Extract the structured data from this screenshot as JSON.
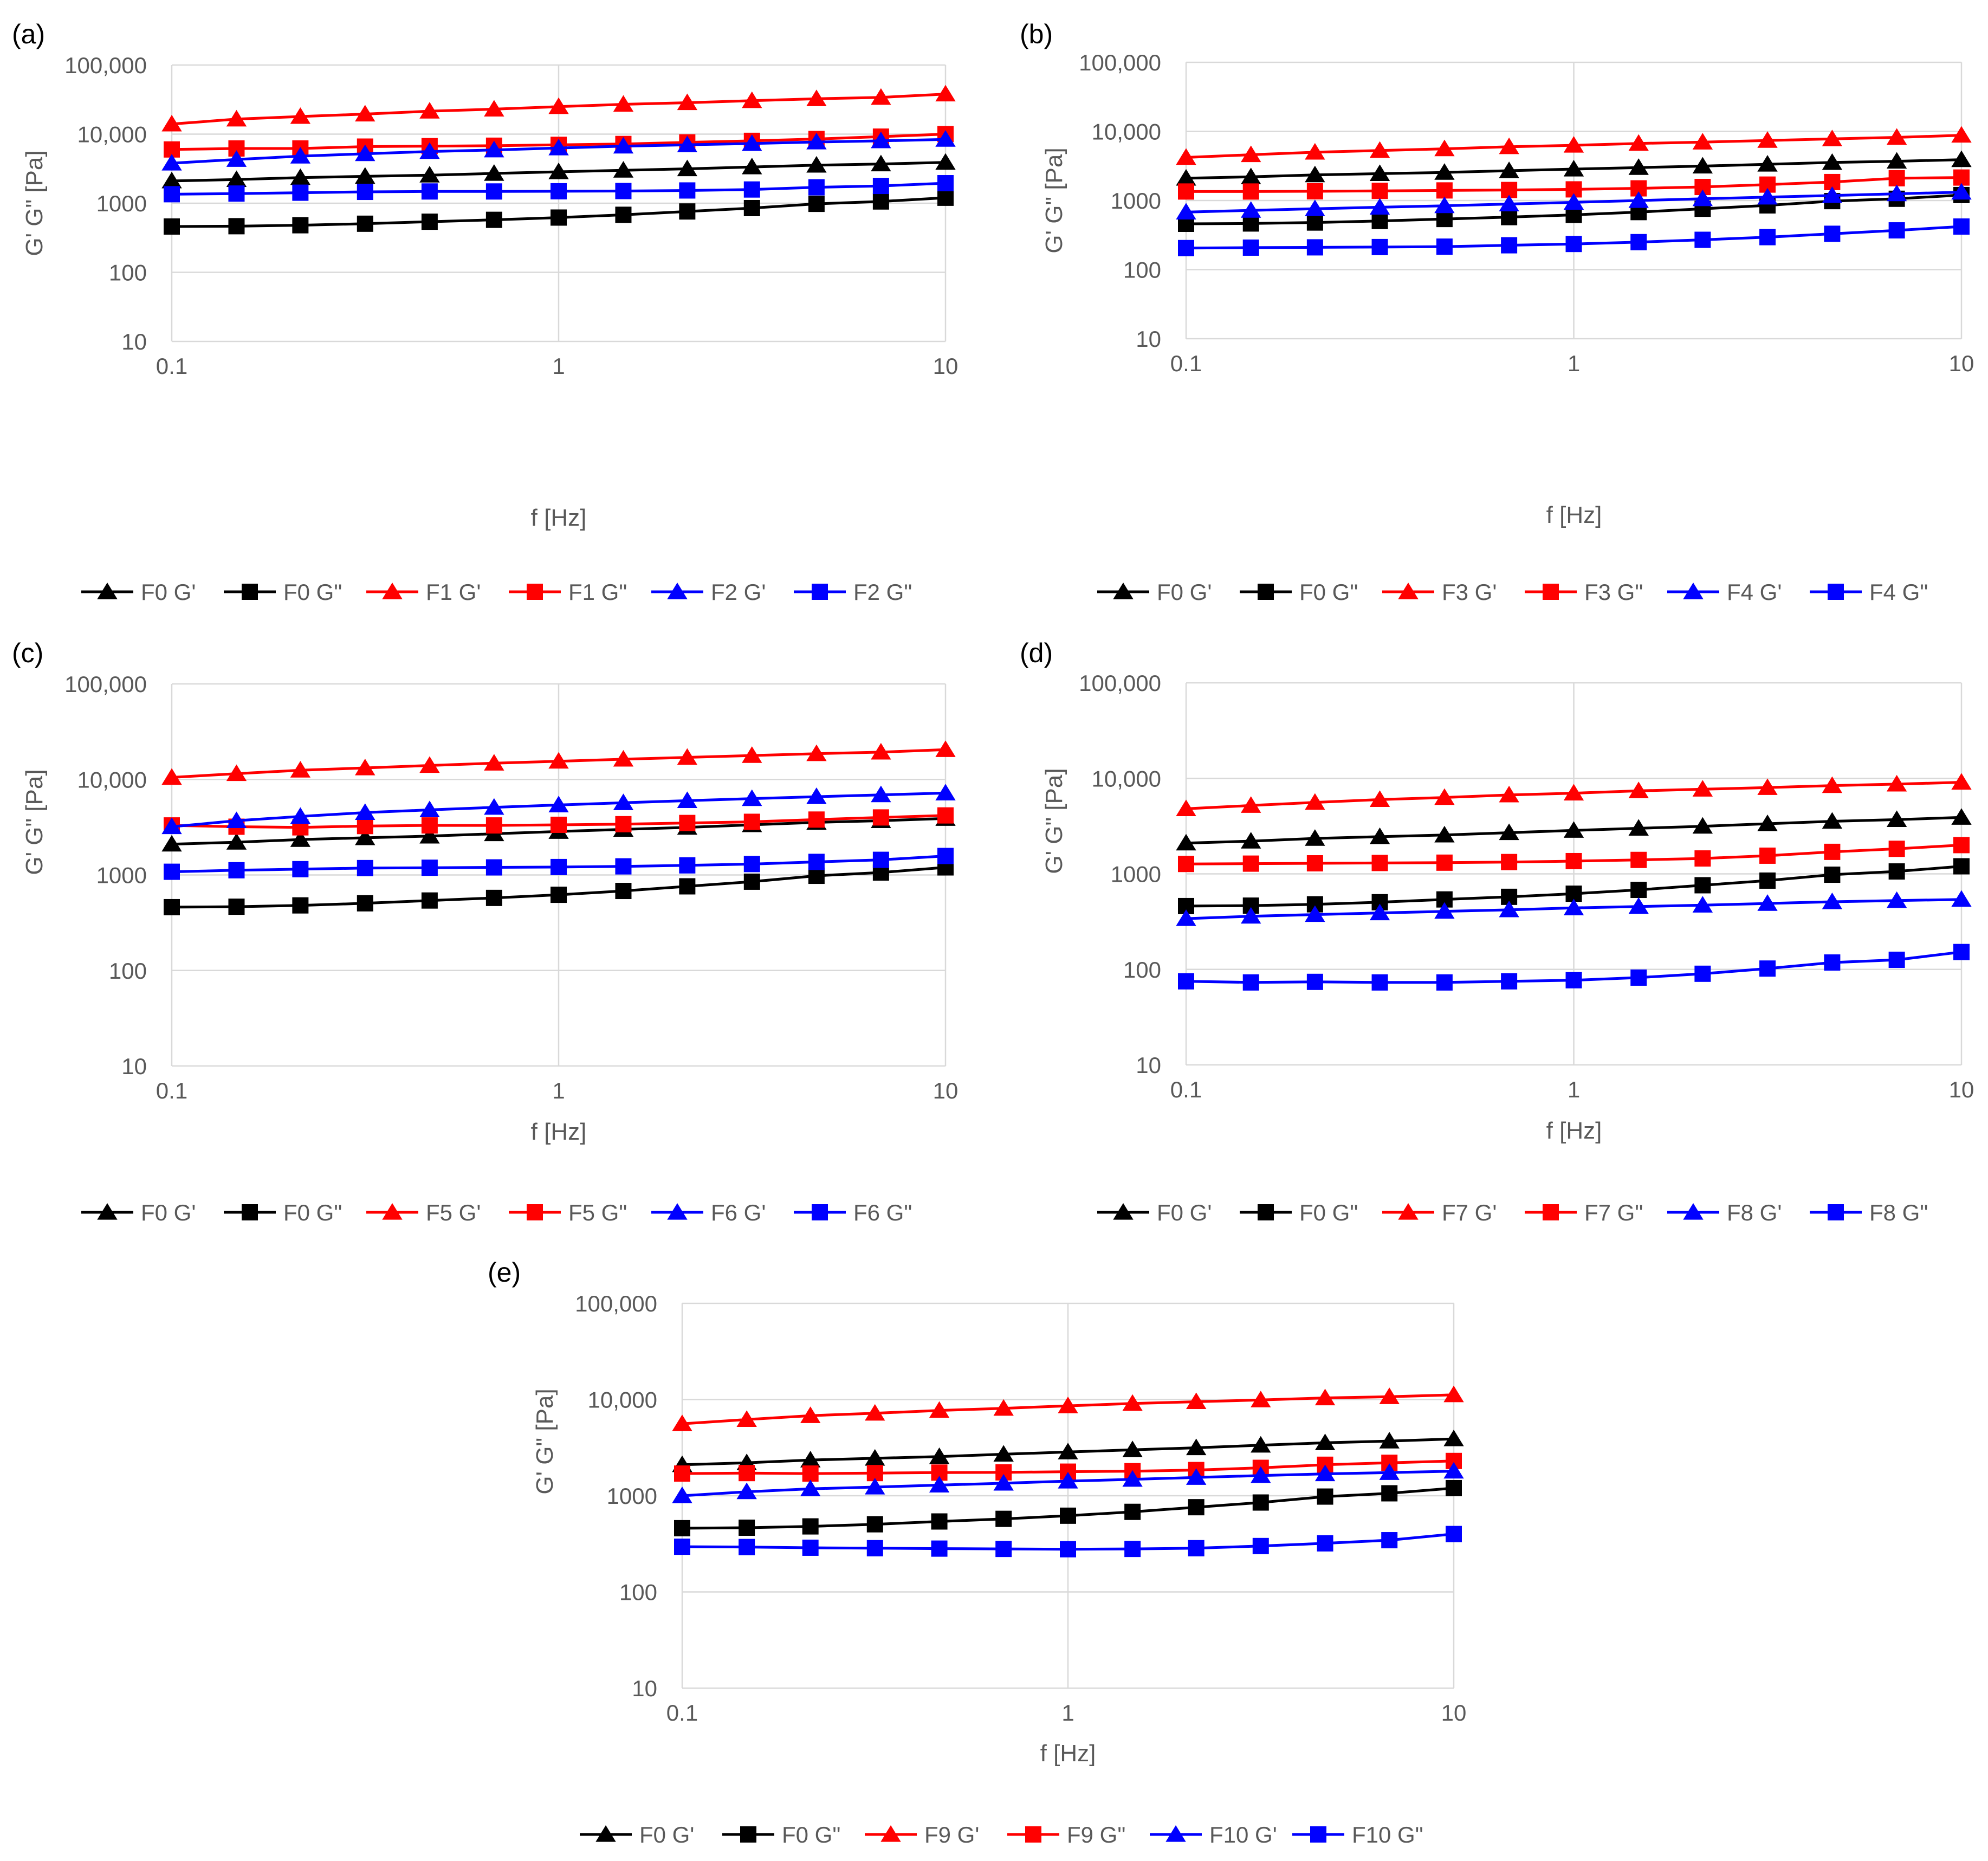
{
  "figure": {
    "x_axis_label": "f [Hz]",
    "y_axis_label": "G' G\" [Pa]",
    "x_tick_labels": [
      "0.1",
      "1",
      "10"
    ],
    "y_tick_labels": [
      "10",
      "100",
      "1000",
      "10,000",
      "100,000"
    ],
    "colors": {
      "black": "#000000",
      "red": "#ff0000",
      "blue": "#0000ff",
      "grid": "#d9d9d9",
      "axis_text": "#595959"
    }
  },
  "chart_data": [
    {
      "panel_label": "(a)",
      "type": "line",
      "xscale": "log",
      "yscale": "log",
      "xlim": [
        0.1,
        10
      ],
      "ylim": [
        10,
        100000
      ],
      "xlabel": "f [Hz]",
      "ylabel": "G' G\" [Pa]",
      "x": [
        0.1,
        0.147,
        0.215,
        0.316,
        0.464,
        0.681,
        1,
        1.47,
        2.15,
        3.16,
        4.64,
        6.81,
        10
      ],
      "series": [
        {
          "name": "F0 G'",
          "color": "#000000",
          "marker": "triangle",
          "values": [
            2100,
            2200,
            2350,
            2450,
            2550,
            2700,
            2850,
            3000,
            3150,
            3350,
            3550,
            3700,
            3900
          ]
        },
        {
          "name": "F0 G\"",
          "color": "#000000",
          "marker": "square",
          "values": [
            460,
            465,
            480,
            505,
            540,
            575,
            620,
            680,
            760,
            850,
            980,
            1060,
            1200
          ]
        },
        {
          "name": "F1 G'",
          "color": "#ff0000",
          "marker": "triangle",
          "values": [
            14000,
            16500,
            18000,
            19500,
            21500,
            23000,
            25000,
            27000,
            28500,
            30500,
            32500,
            34000,
            38000
          ]
        },
        {
          "name": "F1 G\"",
          "color": "#ff0000",
          "marker": "square",
          "values": [
            6000,
            6200,
            6200,
            6600,
            6700,
            6800,
            7000,
            7200,
            7600,
            8000,
            8500,
            9200,
            10000
          ]
        },
        {
          "name": "F2 G'",
          "color": "#0000ff",
          "marker": "triangle",
          "values": [
            3800,
            4300,
            4800,
            5200,
            5600,
            5900,
            6300,
            6700,
            7000,
            7300,
            7700,
            8000,
            8400
          ]
        },
        {
          "name": "F2 G\"",
          "color": "#0000ff",
          "marker": "square",
          "values": [
            1350,
            1380,
            1420,
            1460,
            1480,
            1480,
            1490,
            1500,
            1530,
            1580,
            1700,
            1780,
            1950
          ]
        }
      ]
    },
    {
      "panel_label": "(b)",
      "type": "line",
      "xscale": "log",
      "yscale": "log",
      "xlim": [
        0.1,
        10
      ],
      "ylim": [
        10,
        100000
      ],
      "xlabel": "f [Hz]",
      "ylabel": "G' G\" [Pa]",
      "x": [
        0.1,
        0.147,
        0.215,
        0.316,
        0.464,
        0.681,
        1,
        1.47,
        2.15,
        3.16,
        4.64,
        6.81,
        10
      ],
      "series": [
        {
          "name": "F0 G'",
          "color": "#000000",
          "marker": "triangle",
          "values": [
            2100,
            2200,
            2350,
            2450,
            2550,
            2700,
            2850,
            3000,
            3150,
            3350,
            3550,
            3700,
            3900
          ]
        },
        {
          "name": "F0 G\"",
          "color": "#000000",
          "marker": "square",
          "values": [
            460,
            465,
            480,
            505,
            540,
            575,
            620,
            680,
            760,
            850,
            980,
            1060,
            1200
          ]
        },
        {
          "name": "F3 G'",
          "color": "#ff0000",
          "marker": "triangle",
          "values": [
            4200,
            4600,
            5000,
            5300,
            5600,
            6000,
            6300,
            6700,
            7000,
            7400,
            7800,
            8200,
            8800
          ]
        },
        {
          "name": "F3 G\"",
          "color": "#ff0000",
          "marker": "square",
          "values": [
            1350,
            1350,
            1360,
            1380,
            1400,
            1420,
            1450,
            1500,
            1570,
            1700,
            1850,
            2100,
            2150
          ]
        },
        {
          "name": "F4 G'",
          "color": "#0000ff",
          "marker": "triangle",
          "values": [
            680,
            720,
            760,
            800,
            840,
            890,
            940,
            1000,
            1060,
            1120,
            1180,
            1250,
            1320
          ]
        },
        {
          "name": "F4 G\"",
          "color": "#0000ff",
          "marker": "square",
          "values": [
            205,
            208,
            210,
            212,
            215,
            225,
            235,
            250,
            270,
            295,
            330,
            370,
            420
          ]
        }
      ]
    },
    {
      "panel_label": "(c)",
      "type": "line",
      "xscale": "log",
      "yscale": "log",
      "xlim": [
        0.1,
        10
      ],
      "ylim": [
        10,
        100000
      ],
      "xlabel": "f [Hz]",
      "ylabel": "G' G\" [Pa]",
      "x": [
        0.1,
        0.147,
        0.215,
        0.316,
        0.464,
        0.681,
        1,
        1.47,
        2.15,
        3.16,
        4.64,
        6.81,
        10
      ],
      "series": [
        {
          "name": "F0 G'",
          "color": "#000000",
          "marker": "triangle",
          "values": [
            2100,
            2200,
            2350,
            2450,
            2550,
            2700,
            2850,
            3000,
            3150,
            3350,
            3550,
            3700,
            3900
          ]
        },
        {
          "name": "F0 G\"",
          "color": "#000000",
          "marker": "square",
          "values": [
            460,
            465,
            480,
            505,
            540,
            575,
            620,
            680,
            760,
            850,
            980,
            1060,
            1200
          ]
        },
        {
          "name": "F5 G'",
          "color": "#ff0000",
          "marker": "triangle",
          "values": [
            10500,
            11500,
            12500,
            13200,
            14000,
            14800,
            15500,
            16300,
            17000,
            17800,
            18600,
            19300,
            20500
          ]
        },
        {
          "name": "F5 G\"",
          "color": "#ff0000",
          "marker": "square",
          "values": [
            3300,
            3200,
            3150,
            3250,
            3300,
            3300,
            3350,
            3400,
            3500,
            3600,
            3800,
            4000,
            4200
          ]
        },
        {
          "name": "F6 G'",
          "color": "#0000ff",
          "marker": "triangle",
          "values": [
            3200,
            3700,
            4100,
            4500,
            4800,
            5100,
            5400,
            5700,
            6000,
            6300,
            6600,
            6900,
            7200
          ]
        },
        {
          "name": "F6 G\"",
          "color": "#0000ff",
          "marker": "square",
          "values": [
            1080,
            1120,
            1150,
            1180,
            1190,
            1200,
            1210,
            1230,
            1260,
            1300,
            1370,
            1440,
            1580
          ]
        }
      ]
    },
    {
      "panel_label": "(d)",
      "type": "line",
      "xscale": "log",
      "yscale": "log",
      "xlim": [
        0.1,
        10
      ],
      "ylim": [
        10,
        100000
      ],
      "xlabel": "f [Hz]",
      "ylabel": "G' G\" [Pa]",
      "x": [
        0.1,
        0.147,
        0.215,
        0.316,
        0.464,
        0.681,
        1,
        1.47,
        2.15,
        3.16,
        4.64,
        6.81,
        10
      ],
      "series": [
        {
          "name": "F0 G'",
          "color": "#000000",
          "marker": "triangle",
          "values": [
            2100,
            2200,
            2350,
            2450,
            2550,
            2700,
            2850,
            3000,
            3150,
            3350,
            3550,
            3700,
            3900
          ]
        },
        {
          "name": "F0 G\"",
          "color": "#000000",
          "marker": "square",
          "values": [
            460,
            465,
            480,
            505,
            540,
            575,
            620,
            680,
            760,
            850,
            980,
            1060,
            1200
          ]
        },
        {
          "name": "F7 G'",
          "color": "#ff0000",
          "marker": "triangle",
          "values": [
            4800,
            5200,
            5600,
            6000,
            6300,
            6700,
            7000,
            7400,
            7700,
            8000,
            8400,
            8700,
            9100
          ]
        },
        {
          "name": "F7 G\"",
          "color": "#ff0000",
          "marker": "square",
          "values": [
            1270,
            1280,
            1290,
            1300,
            1310,
            1330,
            1360,
            1400,
            1450,
            1550,
            1700,
            1830,
            2000
          ]
        },
        {
          "name": "F8 G'",
          "color": "#0000ff",
          "marker": "triangle",
          "values": [
            340,
            360,
            375,
            390,
            405,
            420,
            440,
            455,
            470,
            490,
            510,
            525,
            540
          ]
        },
        {
          "name": "F8 G\"",
          "color": "#0000ff",
          "marker": "square",
          "values": [
            75,
            73,
            74,
            73,
            73,
            75,
            77,
            82,
            90,
            102,
            118,
            126,
            152
          ]
        }
      ]
    },
    {
      "panel_label": "(e)",
      "type": "line",
      "xscale": "log",
      "yscale": "log",
      "xlim": [
        0.1,
        10
      ],
      "ylim": [
        10,
        100000
      ],
      "xlabel": "f [Hz]",
      "ylabel": "G' G\" [Pa]",
      "x": [
        0.1,
        0.147,
        0.215,
        0.316,
        0.464,
        0.681,
        1,
        1.47,
        2.15,
        3.16,
        4.64,
        6.81,
        10
      ],
      "series": [
        {
          "name": "F0 G'",
          "color": "#000000",
          "marker": "triangle",
          "values": [
            2100,
            2200,
            2350,
            2450,
            2550,
            2700,
            2850,
            3000,
            3150,
            3350,
            3550,
            3700,
            3900
          ]
        },
        {
          "name": "F0 G\"",
          "color": "#000000",
          "marker": "square",
          "values": [
            460,
            465,
            480,
            505,
            540,
            575,
            620,
            680,
            760,
            850,
            980,
            1060,
            1200
          ]
        },
        {
          "name": "F9 G'",
          "color": "#ff0000",
          "marker": "triangle",
          "values": [
            5600,
            6200,
            6800,
            7200,
            7700,
            8100,
            8600,
            9100,
            9500,
            9900,
            10400,
            10700,
            11200
          ]
        },
        {
          "name": "F9 G\"",
          "color": "#ff0000",
          "marker": "square",
          "values": [
            1700,
            1720,
            1700,
            1720,
            1740,
            1750,
            1780,
            1800,
            1850,
            1950,
            2100,
            2200,
            2300
          ]
        },
        {
          "name": "F10 G'",
          "color": "#0000ff",
          "marker": "triangle",
          "values": [
            1000,
            1100,
            1180,
            1230,
            1290,
            1350,
            1420,
            1480,
            1550,
            1620,
            1690,
            1740,
            1800
          ]
        },
        {
          "name": "F10 G\"",
          "color": "#0000ff",
          "marker": "square",
          "values": [
            295,
            293,
            288,
            285,
            282,
            280,
            278,
            280,
            285,
            300,
            320,
            345,
            400
          ]
        }
      ]
    }
  ]
}
